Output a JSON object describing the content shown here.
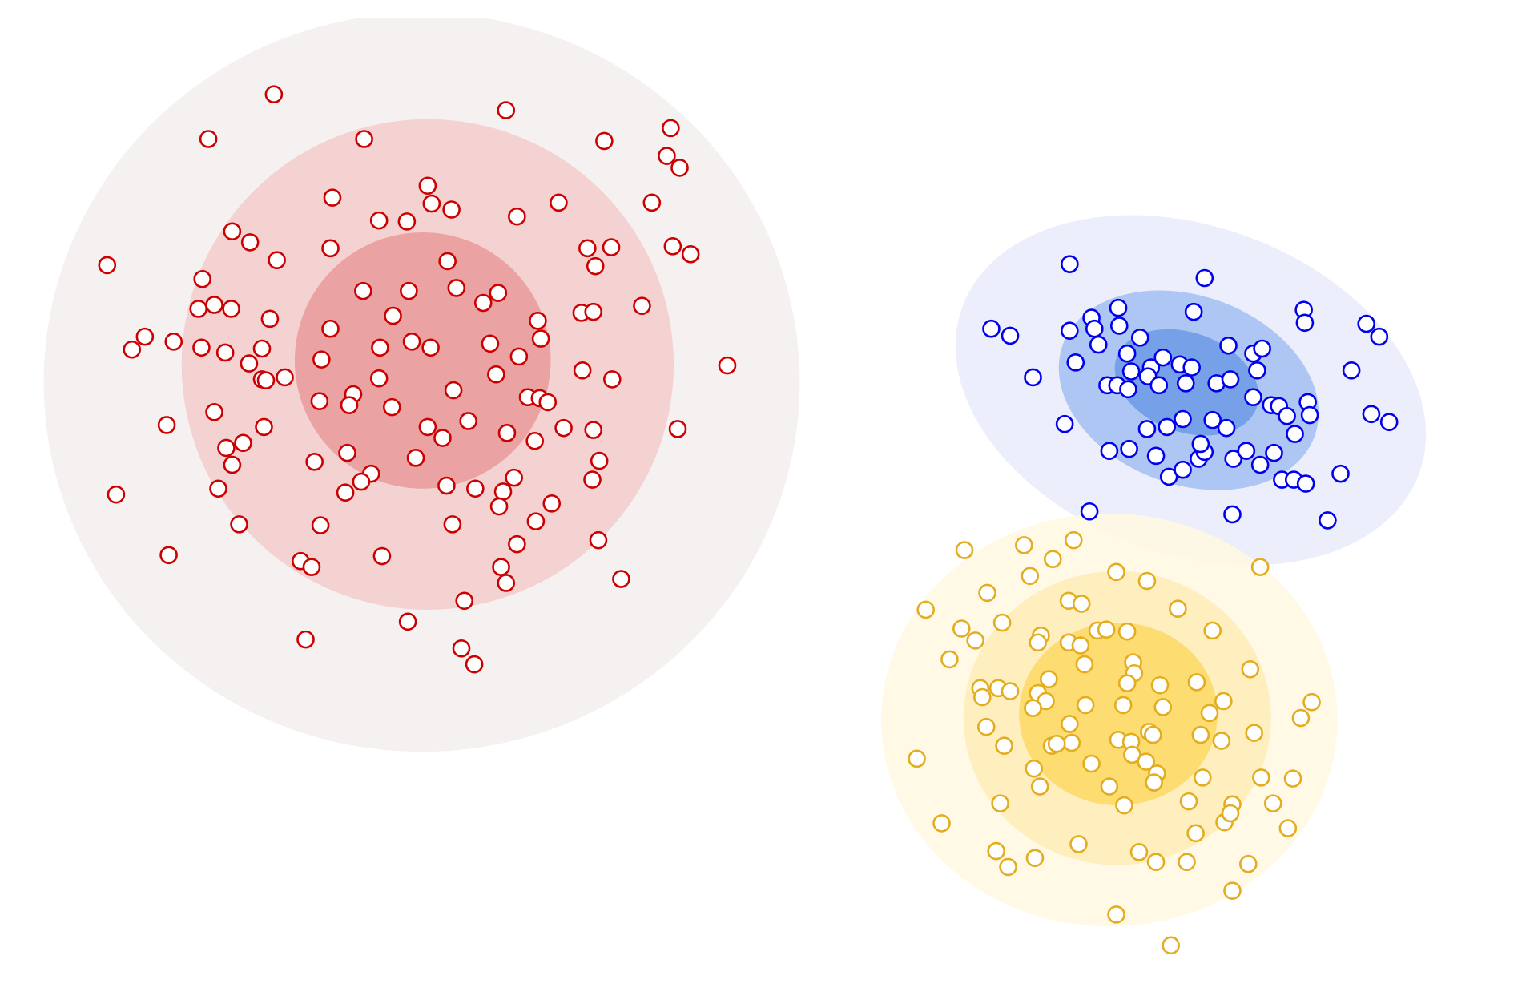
{
  "chart_data": {
    "type": "scatter",
    "xlim": [
      0,
      1550
    ],
    "ylim": [
      1007,
      0
    ],
    "series": [
      {
        "color": "#cc0000",
        "x": [
          276,
          510,
          210,
          367,
          609,
          676,
          672,
          685,
          431,
          335,
          435,
          455,
          563,
          657,
          382,
          410,
          521,
          234,
          252,
          333,
          279,
          592,
          616,
          678,
          696,
          108,
          600,
          451,
          204,
          460,
          366,
          412,
          502,
          487,
          216,
          200,
          233,
          586,
          598,
          647,
          272,
          396,
          542,
          333,
          146,
          133,
          175,
          203,
          227,
          264,
          383,
          415,
          434,
          494,
          545,
          523,
          324,
          251,
          733,
          587,
          500,
          617,
          287,
          264,
          268,
          382,
          457,
          356,
          532,
          544,
          552,
          322,
          352,
          395,
          216,
          472,
          168,
          266,
          431,
          446,
          511,
          568,
          598,
          683,
          245,
          228,
          539,
          350,
          234,
          317,
          419,
          604,
          374,
          364,
          348,
          450,
          479,
          518,
          507,
          597,
          117,
          220,
          503,
          556,
          241,
          323,
          456,
          540,
          603,
          521,
          170,
          385,
          303,
          314,
          505,
          510,
          626,
          468,
          411,
          308,
          465,
          478
        ],
        "values": [
          95,
          111,
          140,
          140,
          142,
          129,
          157,
          169,
          187,
          199,
          205,
          211,
          204,
          204,
          222,
          223,
          218,
          233,
          244,
          250,
          262,
          250,
          249,
          248,
          256,
          267,
          268,
          263,
          281,
          290,
          293,
          293,
          295,
          305,
          307,
          311,
          311,
          315,
          314,
          308,
          321,
          318,
          323,
          331,
          339,
          352,
          344,
          350,
          355,
          351,
          350,
          344,
          350,
          346,
          341,
          359,
          362,
          366,
          368,
          373,
          377,
          382,
          380,
          382,
          383,
          381,
          393,
          397,
          400,
          401,
          405,
          404,
          408,
          410,
          415,
          424,
          428,
          430,
          430,
          441,
          436,
          431,
          433,
          432,
          446,
          451,
          444,
          456,
          468,
          465,
          461,
          464,
          477,
          485,
          496,
          489,
          492,
          481,
          495,
          483,
          498,
          492,
          510,
          507,
          528,
          529,
          528,
          525,
          544,
          548,
          559,
          560,
          565,
          571,
          571,
          587,
          583,
          605,
          626,
          644,
          653,
          669
        ],
        "regions": [
          {
            "cx": 425,
            "cy": 385,
            "rx": 381,
            "ry": 372,
            "angle": 0,
            "color": "#f5efef"
          },
          {
            "cx": 431,
            "cy": 367,
            "rx": 248,
            "ry": 247,
            "angle": 0,
            "color": "#f4cdcd"
          },
          {
            "cx": 426,
            "cy": 363,
            "rx": 129,
            "ry": 129,
            "angle": 0,
            "color": "#e99b9b"
          }
        ]
      },
      {
        "color": "#0000ee",
        "x": [
          1078,
          1214,
          999,
          1018,
          1078,
          1100,
          1127,
          1103,
          1128,
          1107,
          1149,
          1203,
          1314,
          1315,
          1377,
          1390,
          1084,
          1136,
          1140,
          1160,
          1172,
          1189,
          1201,
          1157,
          1168,
          1195,
          1116,
          1126,
          1137,
          1226,
          1240,
          1238,
          1263,
          1272,
          1267,
          1362,
          1041,
          1263,
          1281,
          1289,
          1297,
          1318,
          1320,
          1382,
          1400,
          1073,
          1156,
          1176,
          1192,
          1222,
          1236,
          1305,
          1118,
          1138,
          1165,
          1208,
          1214,
          1210,
          1243,
          1256,
          1270,
          1284,
          1178,
          1192,
          1292,
          1304,
          1316,
          1351,
          1098,
          1242,
          1338
        ],
        "values": [
          266,
          280,
          331,
          338,
          333,
          320,
          310,
          331,
          328,
          347,
          340,
          314,
          312,
          325,
          326,
          339,
          365,
          356,
          374,
          370,
          360,
          367,
          370,
          379,
          388,
          386,
          388,
          388,
          392,
          386,
          382,
          348,
          356,
          351,
          373,
          373,
          380,
          400,
          408,
          409,
          419,
          405,
          418,
          417,
          425,
          427,
          432,
          430,
          422,
          423,
          431,
          437,
          454,
          452,
          459,
          462,
          455,
          447,
          462,
          454,
          468,
          456,
          480,
          473,
          483,
          483,
          487,
          477,
          515,
          518,
          524
        ],
        "regions": [
          {
            "cx": 1200,
            "cy": 393,
            "rx": 245,
            "ry": 165,
            "angle": 20,
            "color": "#e9ecfa"
          },
          {
            "cx": 1198,
            "cy": 393,
            "rx": 135,
            "ry": 95,
            "angle": 20,
            "color": "#a5c0f1"
          },
          {
            "cx": 1196,
            "cy": 385,
            "rx": 75,
            "ry": 50,
            "angle": 20,
            "color": "#6e9ce6"
          }
        ]
      },
      {
        "color": "#e3ad1f",
        "x": [
          972,
          1032,
          1082,
          1061,
          1038,
          1125,
          1156,
          1270,
          995,
          933,
          1077,
          1090,
          1187,
          969,
          983,
          1010,
          1049,
          1046,
          1077,
          1089,
          1106,
          1115,
          1136,
          1222,
          957,
          1093,
          1142,
          1143,
          1136,
          1169,
          1206,
          1260,
          988,
          990,
          1006,
          1018,
          1046,
          1057,
          1054,
          1041,
          1094,
          1132,
          1172,
          1219,
          1233,
          1322,
          1311,
          994,
          1078,
          1080,
          1060,
          1065,
          1012,
          1127,
          1140,
          1158,
          1162,
          1210,
          1231,
          1264,
          924,
          1100,
          1141,
          1155,
          1166,
          1163,
          1042,
          1048,
          1118,
          1212,
          1271,
          1303,
          1008,
          1133,
          1198,
          1242,
          1283,
          1234,
          1240,
          949,
          1298,
          1205,
          1087,
          1004,
          1016,
          1043,
          1148,
          1165,
          1196,
          1258,
          1242,
          1125,
          1180
        ],
        "values": [
          554,
          549,
          544,
          563,
          580,
          576,
          585,
          571,
          597,
          614,
          605,
          608,
          613,
          633,
          645,
          627,
          640,
          647,
          647,
          650,
          635,
          634,
          636,
          635,
          664,
          669,
          667,
          678,
          688,
          690,
          687,
          674,
          693,
          702,
          693,
          696,
          698,
          684,
          706,
          713,
          710,
          710,
          712,
          718,
          706,
          707,
          723,
          732,
          729,
          748,
          751,
          749,
          751,
          745,
          747,
          737,
          740,
          740,
          746,
          738,
          764,
          769,
          760,
          767,
          779,
          788,
          774,
          792,
          792,
          783,
          783,
          784,
          809,
          811,
          807,
          810,
          809,
          828,
          819,
          829,
          834,
          839,
          850,
          857,
          873,
          864,
          858,
          868,
          868,
          870,
          897,
          921,
          952
        ],
        "regions": [
          {
            "cx": 1118,
            "cy": 725,
            "rx": 230,
            "ry": 208,
            "angle": 0,
            "color": "#fff8e3"
          },
          {
            "cx": 1126,
            "cy": 723,
            "rx": 155,
            "ry": 148,
            "angle": 0,
            "color": "#ffecb8"
          },
          {
            "cx": 1127,
            "cy": 719,
            "rx": 100,
            "ry": 92,
            "angle": 0,
            "color": "#fdd966"
          }
        ]
      }
    ]
  }
}
